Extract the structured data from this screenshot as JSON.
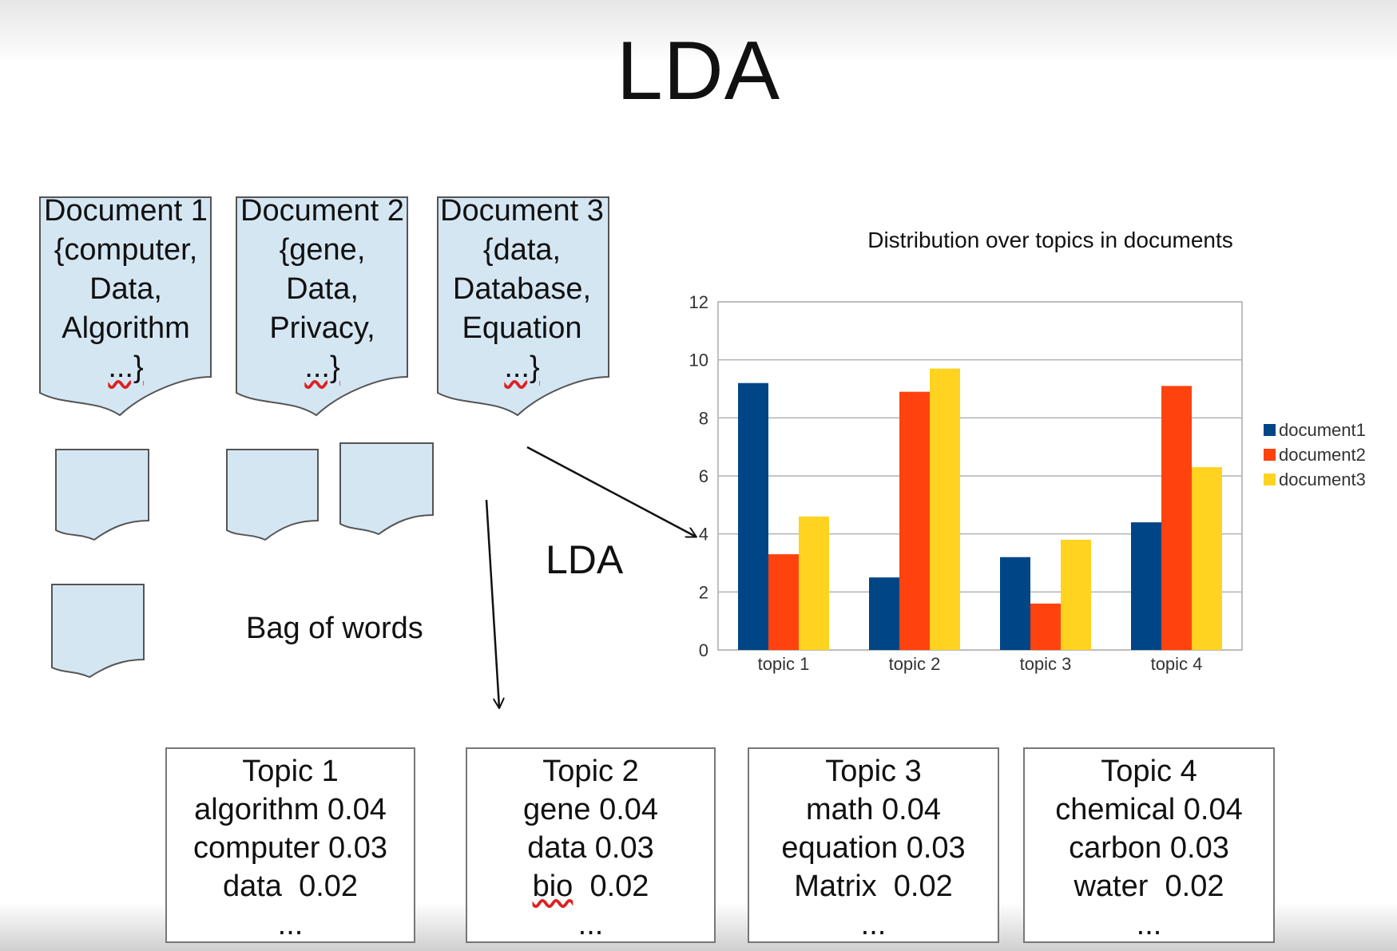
{
  "title": "LDA",
  "documents": [
    {
      "title": "Document 1",
      "words": [
        "{computer,",
        "Data,",
        "Algorithm"
      ],
      "ellipsis": "...}"
    },
    {
      "title": "Document 2",
      "words": [
        "{gene,",
        "Data,",
        "Privacy,"
      ],
      "ellipsis": "...}"
    },
    {
      "title": "Document 3",
      "words": [
        "{data,",
        "Database,",
        "Equation"
      ],
      "ellipsis": "...}"
    }
  ],
  "labels": {
    "lda": "LDA",
    "bag_of_words": "Bag of words"
  },
  "topics": [
    {
      "title": "Topic 1",
      "words": [
        {
          "word": "algorithm",
          "p": "0.04"
        },
        {
          "word": "computer",
          "p": "0.03"
        },
        {
          "word": "data",
          "p": "0.02"
        }
      ],
      "ellipsis": "..."
    },
    {
      "title": "Topic 2",
      "words": [
        {
          "word": "gene",
          "p": "0.04"
        },
        {
          "word": "data",
          "p": "0.03"
        },
        {
          "word": "bio",
          "p": "0.02"
        }
      ],
      "ellipsis": "..."
    },
    {
      "title": "Topic 3",
      "words": [
        {
          "word": "math",
          "p": "0.04"
        },
        {
          "word": "equation",
          "p": "0.03"
        },
        {
          "word": "Matrix",
          "p": "0.02"
        }
      ],
      "ellipsis": "..."
    },
    {
      "title": "Topic 4",
      "words": [
        {
          "word": "chemical",
          "p": "0.04"
        },
        {
          "word": "carbon",
          "p": "0.03"
        },
        {
          "word": "water",
          "p": "0.02"
        }
      ],
      "ellipsis": "..."
    }
  ],
  "chart_data": {
    "type": "bar",
    "title": "Distribution over topics in documents",
    "categories": [
      "topic 1",
      "topic 2",
      "topic 3",
      "topic 4"
    ],
    "series": [
      {
        "name": "document1",
        "values": [
          9.2,
          2.5,
          3.2,
          4.4
        ],
        "color": "#004586"
      },
      {
        "name": "document2",
        "values": [
          3.3,
          8.9,
          1.6,
          9.1
        ],
        "color": "#ff420e"
      },
      {
        "name": "document3",
        "values": [
          4.6,
          9.7,
          3.8,
          6.3
        ],
        "color": "#ffd320"
      }
    ],
    "ylim": [
      0,
      12
    ],
    "yticks": [
      0,
      2,
      4,
      6,
      8,
      10,
      12
    ],
    "grid": true,
    "legend": "right",
    "xlabel": "",
    "ylabel": ""
  }
}
